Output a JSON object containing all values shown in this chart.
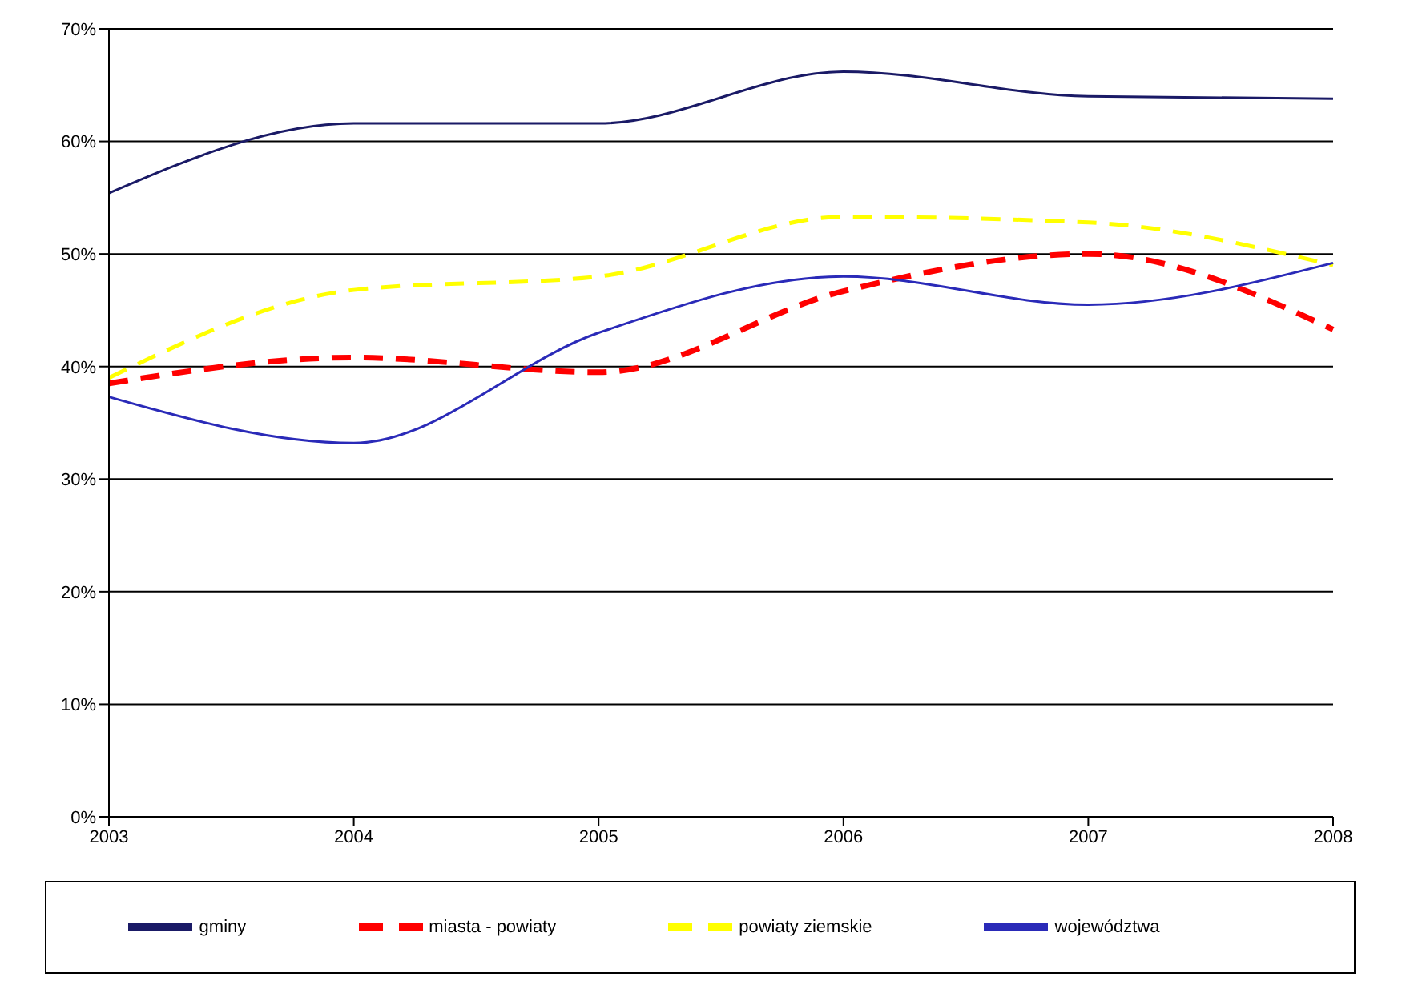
{
  "chart_data": {
    "type": "line",
    "categories": [
      "2003",
      "2004",
      "2005",
      "2006",
      "2007",
      "2008"
    ],
    "series": [
      {
        "name": "gminy",
        "color": "#1a1a66",
        "values": [
          55.4,
          61.6,
          61.6,
          66.2,
          64,
          63.8
        ]
      },
      {
        "name": "miasta - powiaty",
        "color": "#ff0000",
        "line_style": "dashed",
        "values": [
          38.5,
          40.8,
          39.5,
          46.7,
          50,
          43.3
        ]
      },
      {
        "name": "powiaty ziemskie",
        "color": "#ffff00",
        "line_style": "dashed",
        "values": [
          39,
          46.8,
          48,
          53.3,
          52.8,
          49
        ]
      },
      {
        "name": "województwa",
        "color": "#2a2ab8",
        "values": [
          37.3,
          33.2,
          43,
          48,
          45.5,
          49.2
        ]
      }
    ],
    "ylim": [
      0,
      70
    ],
    "yticks": [
      {
        "value": 0,
        "label": "0%"
      },
      {
        "value": 10,
        "label": "10%"
      },
      {
        "value": 20,
        "label": "20%"
      },
      {
        "value": 30,
        "label": "30%"
      },
      {
        "value": 40,
        "label": "40%"
      },
      {
        "value": 50,
        "label": "50%"
      },
      {
        "value": 60,
        "label": "60%"
      },
      {
        "value": 70,
        "label": "70%"
      }
    ],
    "grid": "y",
    "legend": "bottom",
    "marker": "none"
  }
}
